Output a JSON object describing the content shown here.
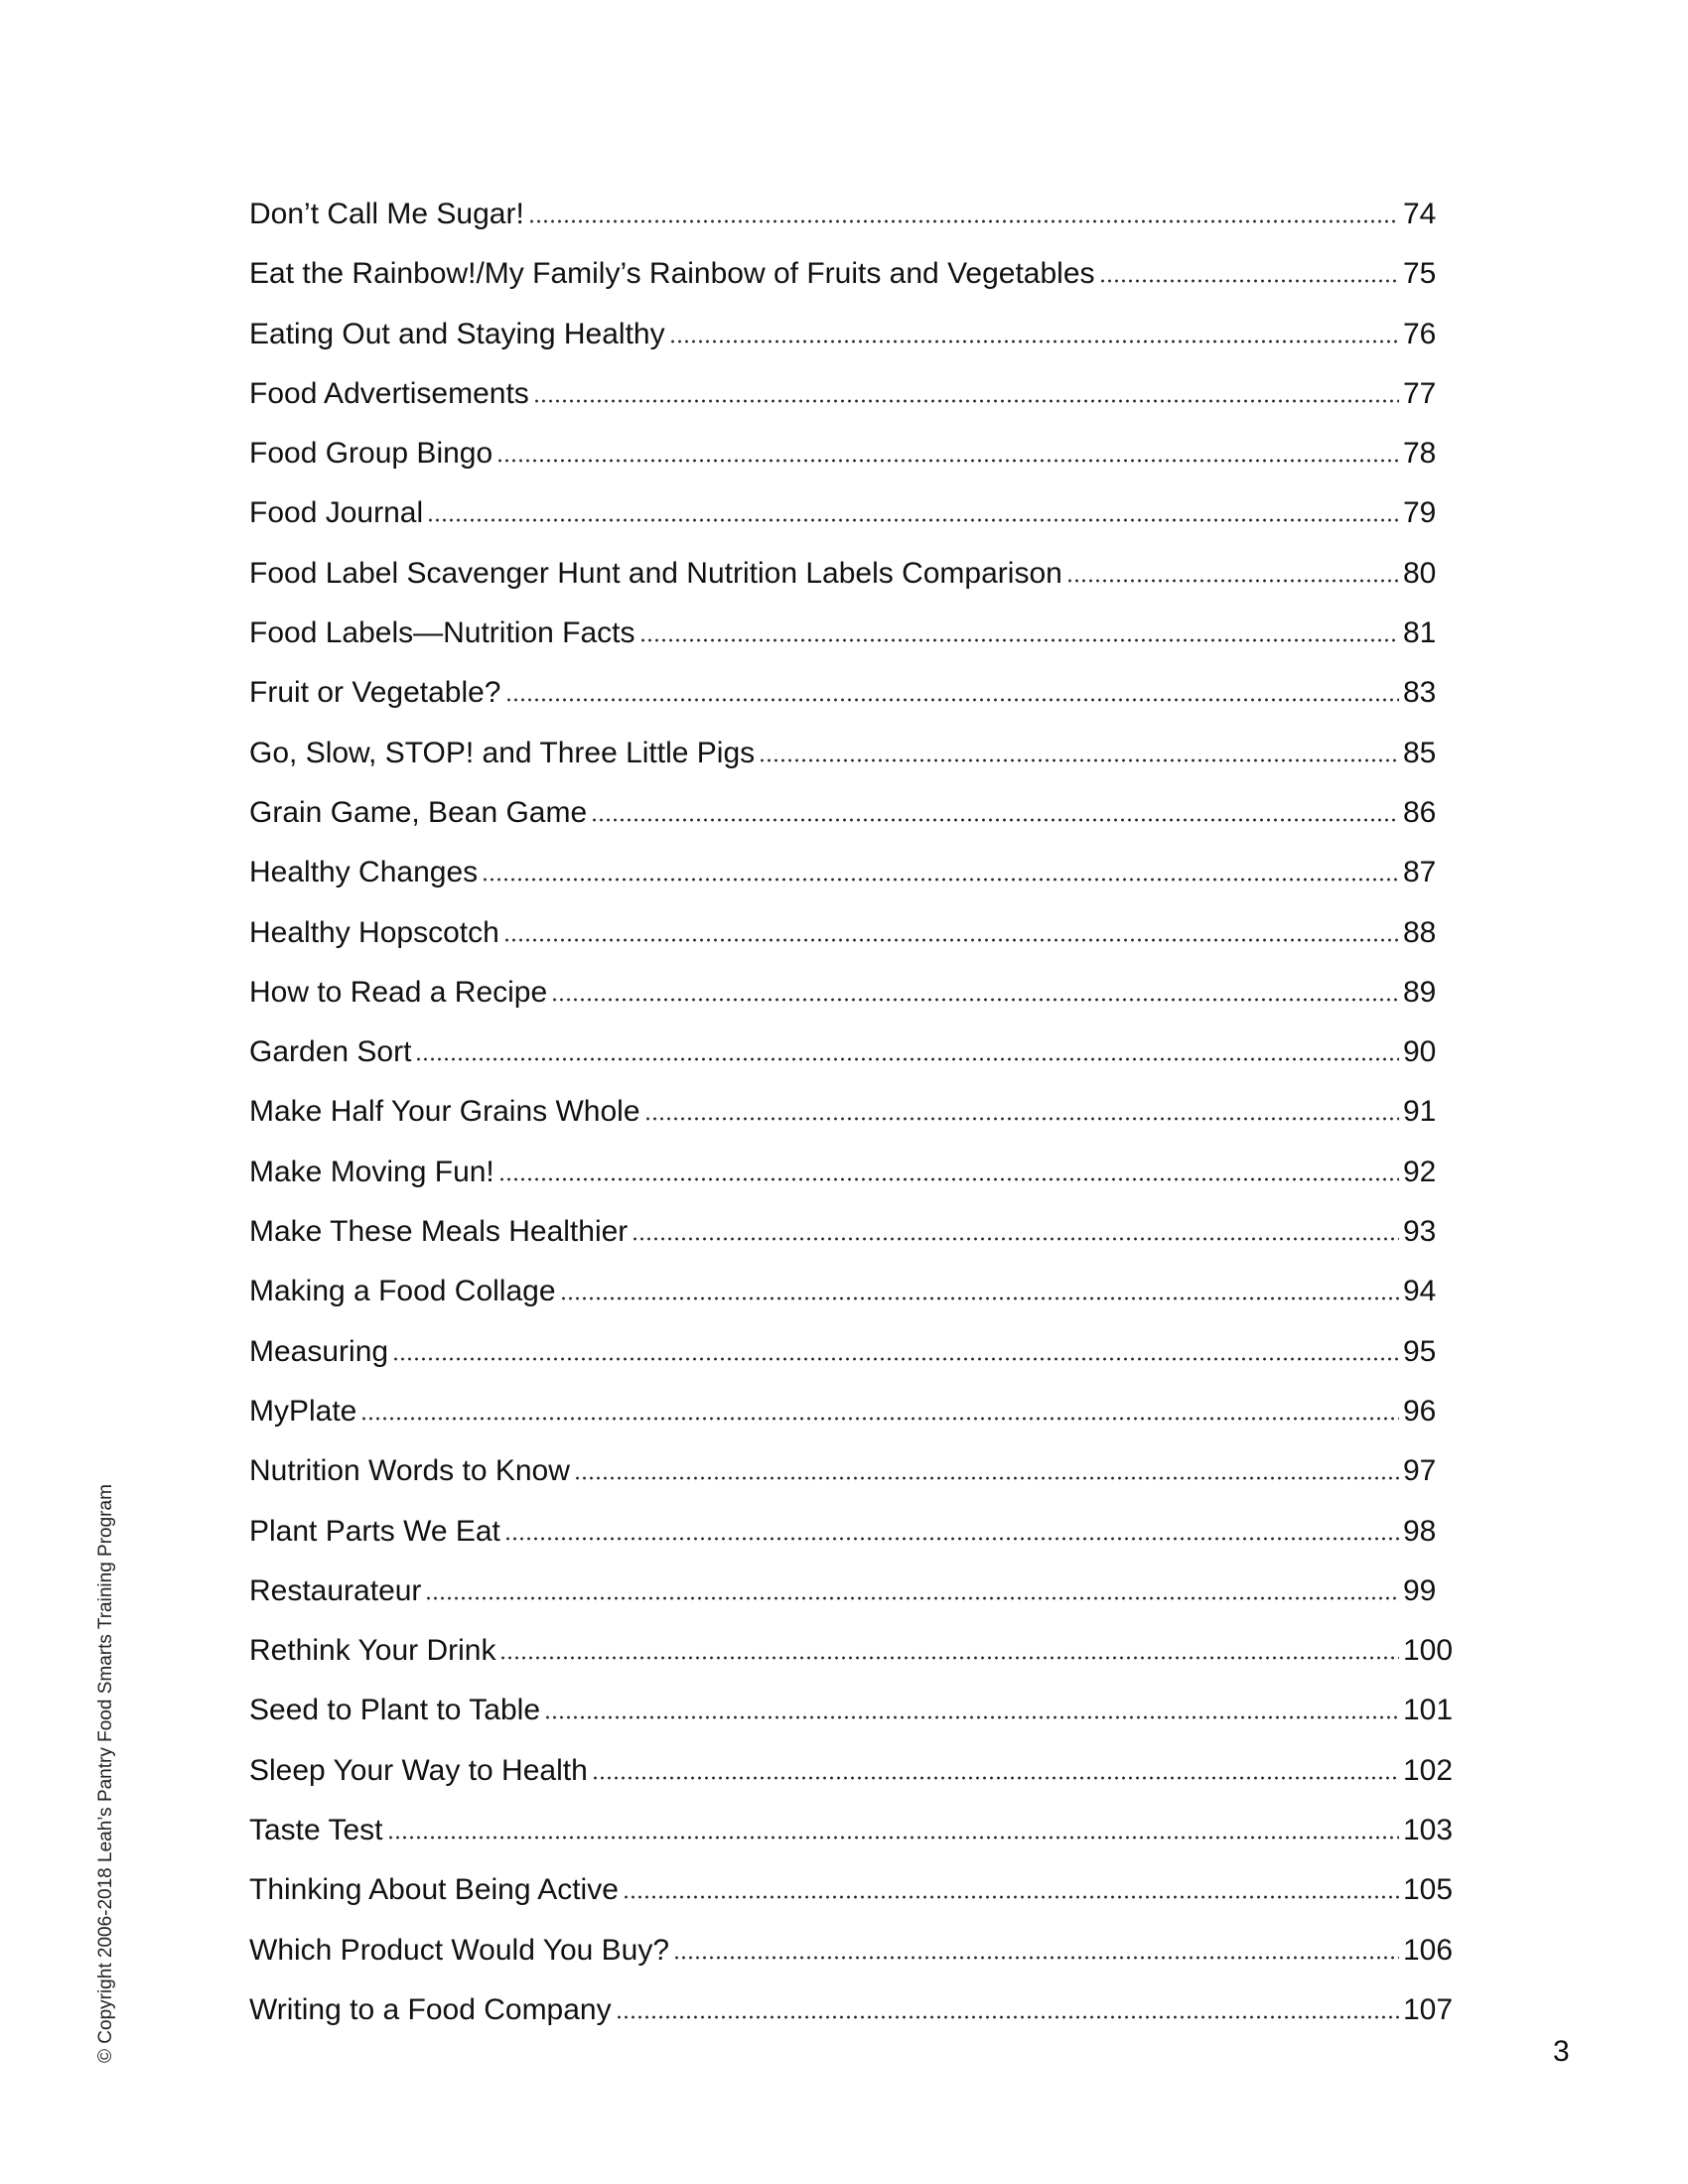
{
  "toc": [
    {
      "title": "Don’t Call Me Sugar!",
      "page": "74"
    },
    {
      "title": "Eat the Rainbow!/My Family’s Rainbow of Fruits and Vegetables",
      "page": "75"
    },
    {
      "title": "Eating Out and Staying Healthy",
      "page": "76"
    },
    {
      "title": "Food Advertisements",
      "page": "77"
    },
    {
      "title": "Food Group Bingo",
      "page": "78"
    },
    {
      "title": "Food Journal",
      "page": "79"
    },
    {
      "title": "Food Label Scavenger Hunt and Nutrition Labels Comparison",
      "page": "80"
    },
    {
      "title": "Food Labels—Nutrition Facts",
      "page": "81"
    },
    {
      "title": "Fruit or Vegetable?",
      "page": "83"
    },
    {
      "title": "Go, Slow, STOP! and Three Little Pigs",
      "page": "85"
    },
    {
      "title": "Grain Game, Bean Game",
      "page": "86"
    },
    {
      "title": "Healthy Changes",
      "page": "87"
    },
    {
      "title": "Healthy Hopscotch",
      "page": "88"
    },
    {
      "title": "How to Read a Recipe",
      "page": "89"
    },
    {
      "title": "Garden Sort",
      "page": "90"
    },
    {
      "title": "Make Half Your Grains Whole",
      "page": "91"
    },
    {
      "title": "Make Moving Fun!",
      "page": "92"
    },
    {
      "title": "Make These Meals Healthier",
      "page": "93"
    },
    {
      "title": "Making a Food Collage",
      "page": "94"
    },
    {
      "title": "Measuring",
      "page": "95"
    },
    {
      "title": "MyPlate",
      "page": "96"
    },
    {
      "title": "Nutrition Words to Know",
      "page": "97"
    },
    {
      "title": "Plant Parts We Eat",
      "page": "98"
    },
    {
      "title": "Restaurateur",
      "page": "99"
    },
    {
      "title": "Rethink Your Drink",
      "page": "100"
    },
    {
      "title": "Seed to Plant to Table",
      "page": "101"
    },
    {
      "title": "Sleep Your Way to Health",
      "page": "102"
    },
    {
      "title": "Taste Test",
      "page": "103"
    },
    {
      "title": "Thinking About Being Active",
      "page": "105"
    },
    {
      "title": "Which Product Would You Buy?",
      "page": "106"
    },
    {
      "title": "Writing to a Food Company",
      "page": "107"
    }
  ],
  "footer": {
    "copyright": "© Copyright 2006-2018  Leah’s Pantry Food Smarts Training Program",
    "page_number": "3"
  }
}
